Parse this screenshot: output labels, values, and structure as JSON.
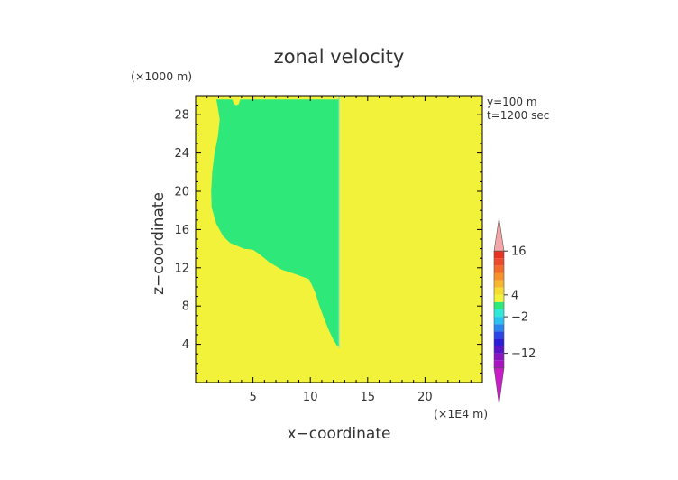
{
  "chart_data": {
    "type": "heatmap",
    "title": "zonal velocity",
    "xlabel": "x−coordinate",
    "ylabel": "z−coordinate",
    "x_unit": "(×1E4 m)",
    "y_unit": "(×1000 m)",
    "info": [
      "y=100 m",
      "t=1200 sec"
    ],
    "xlim": [
      0,
      25
    ],
    "ylim": [
      0,
      30
    ],
    "x_ticks": [
      5,
      10,
      15,
      20
    ],
    "y_ticks": [
      4,
      8,
      12,
      16,
      20,
      24,
      28
    ],
    "colors": {
      "positive": "#f2f23a",
      "near_zero": "#2ee87a",
      "frame": "#000000"
    },
    "regions": [
      {
        "name": "left-green-region",
        "value_class": "near_zero",
        "outline": [
          [
            1.8,
            29.6
          ],
          [
            3.2,
            29.6
          ],
          [
            3.35,
            29.1
          ],
          [
            3.55,
            29.0
          ],
          [
            3.75,
            29.1
          ],
          [
            3.9,
            29.6
          ],
          [
            12.5,
            29.6
          ],
          [
            12.5,
            3.8
          ],
          [
            12.35,
            3.8
          ],
          [
            12.0,
            4.5
          ],
          [
            11.6,
            5.5
          ],
          [
            11.2,
            6.7
          ],
          [
            10.8,
            8.0
          ],
          [
            10.4,
            9.5
          ],
          [
            9.9,
            10.8
          ],
          [
            8.8,
            11.3
          ],
          [
            7.5,
            11.8
          ],
          [
            6.4,
            12.6
          ],
          [
            5.6,
            13.4
          ],
          [
            5.0,
            13.9
          ],
          [
            4.2,
            14.0
          ],
          [
            3.6,
            14.3
          ],
          [
            3.0,
            14.6
          ],
          [
            2.4,
            15.3
          ],
          [
            1.8,
            16.6
          ],
          [
            1.4,
            18.3
          ],
          [
            1.35,
            20.0
          ],
          [
            1.45,
            22.0
          ],
          [
            1.65,
            24.0
          ],
          [
            1.95,
            25.8
          ],
          [
            2.1,
            27.5
          ],
          [
            1.9,
            29.0
          ]
        ]
      },
      {
        "name": "right-yellow-region",
        "value_class": "positive",
        "outline": [
          [
            12.5,
            29.6
          ],
          [
            20.4,
            29.6
          ],
          [
            20.55,
            29.0
          ],
          [
            20.8,
            28.7
          ],
          [
            21.15,
            28.5
          ],
          [
            21.55,
            28.6
          ],
          [
            21.8,
            29.0
          ],
          [
            21.9,
            29.6
          ],
          [
            22.3,
            29.6
          ],
          [
            22.6,
            28.8
          ],
          [
            23.1,
            27.4
          ],
          [
            23.5,
            25.5
          ],
          [
            23.75,
            23.5
          ],
          [
            23.85,
            21.2
          ],
          [
            23.8,
            19.0
          ],
          [
            23.55,
            17.0
          ],
          [
            23.2,
            15.2
          ],
          [
            22.8,
            14.0
          ],
          [
            22.2,
            13.6
          ],
          [
            21.5,
            13.8
          ],
          [
            20.8,
            14.0
          ],
          [
            20.1,
            13.9
          ],
          [
            19.2,
            13.4
          ],
          [
            18.0,
            12.8
          ],
          [
            16.8,
            12.0
          ],
          [
            15.6,
            11.3
          ],
          [
            14.6,
            10.8
          ],
          [
            14.3,
            9.5
          ],
          [
            13.9,
            8.0
          ],
          [
            13.5,
            6.5
          ],
          [
            13.1,
            5.0
          ],
          [
            12.85,
            4.0
          ],
          [
            12.65,
            3.5
          ],
          [
            12.5,
            3.3
          ],
          [
            12.55,
            0
          ],
          [
            24.6,
            0
          ],
          [
            24.6,
            29.6
          ]
        ]
      }
    ],
    "colorbar": {
      "tick_labels": [
        "16",
        "4",
        "−2",
        "−12"
      ],
      "tick_values": [
        16,
        4,
        -2,
        -12
      ],
      "range": [
        -20,
        20
      ],
      "bands": [
        {
          "from": 16,
          "to": 20,
          "color": "#f4a6a8"
        },
        {
          "from": 14,
          "to": 16,
          "color": "#e83222"
        },
        {
          "from": 12,
          "to": 14,
          "color": "#ee4a2e"
        },
        {
          "from": 10,
          "to": 12,
          "color": "#f26b2d"
        },
        {
          "from": 8,
          "to": 10,
          "color": "#f6912c"
        },
        {
          "from": 6,
          "to": 8,
          "color": "#f6b62e"
        },
        {
          "from": 4,
          "to": 6,
          "color": "#f4dd30"
        },
        {
          "from": 2,
          "to": 4,
          "color": "#f2f23a"
        },
        {
          "from": 0,
          "to": 2,
          "color": "#2ee87a"
        },
        {
          "from": -2,
          "to": 0,
          "color": "#2ee8d8"
        },
        {
          "from": -4,
          "to": -2,
          "color": "#2cc0f0"
        },
        {
          "from": -6,
          "to": -4,
          "color": "#2a86ee"
        },
        {
          "from": -8,
          "to": -6,
          "color": "#2a46e6"
        },
        {
          "from": -10,
          "to": -8,
          "color": "#2a1ed6"
        },
        {
          "from": -12,
          "to": -10,
          "color": "#5a14c8"
        },
        {
          "from": -14,
          "to": -12,
          "color": "#8a14c0"
        },
        {
          "from": -16,
          "to": -14,
          "color": "#a814c0"
        },
        {
          "from": -20,
          "to": -16,
          "color": "#c81cc8"
        }
      ]
    }
  }
}
